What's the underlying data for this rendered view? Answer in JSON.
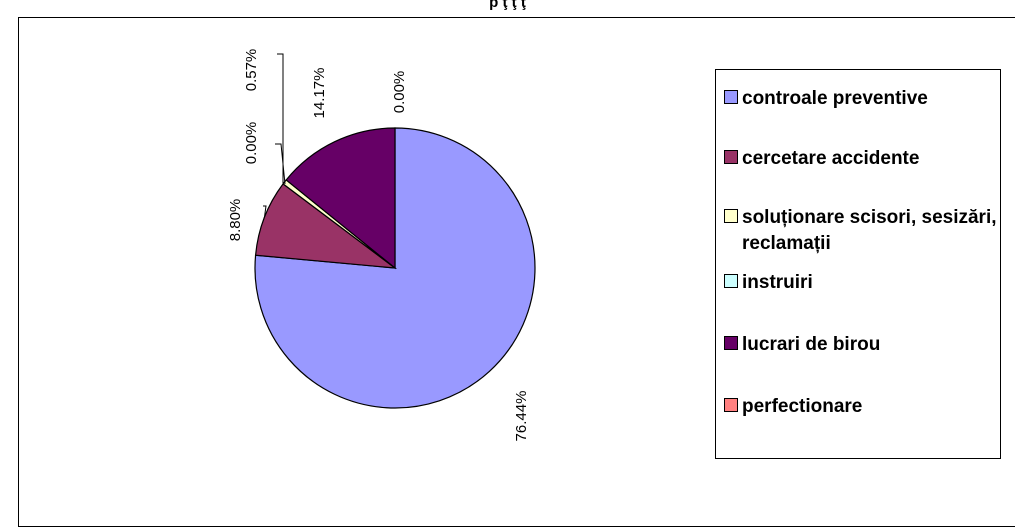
{
  "chart_data": {
    "type": "pie",
    "title": "p                                                     ţ   ţ         ţ",
    "categories": [
      "controale preventive",
      "cercetare accidente",
      "soluționare scisori, sesizări, reclamații",
      "instruiri",
      "lucrari de birou",
      "perfectionare"
    ],
    "values": [
      76.44,
      8.8,
      0.57,
      0.0,
      14.17,
      0.0
    ],
    "labels": [
      "76.44%",
      "8.80%",
      "0.57%",
      "0.00%",
      "14.17%",
      "0.00%"
    ],
    "colors": [
      "#9999FF",
      "#993366",
      "#FFFFCC",
      "#CCFFFF",
      "#660066",
      "#FF8080"
    ],
    "legend_position": "right",
    "label_orientation": "vertical"
  }
}
